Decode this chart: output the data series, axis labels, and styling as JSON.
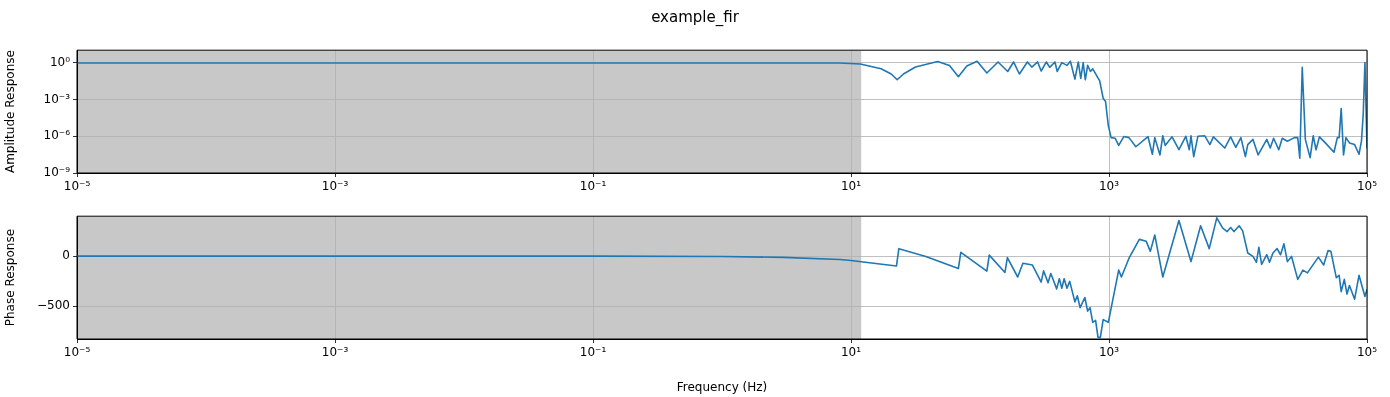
{
  "chart_data": [
    {
      "type": "line",
      "title": "example_fir",
      "ylabel": "Amplitude Response",
      "log": "xy",
      "grid": true,
      "marker": "none",
      "xlim": [
        1e-05,
        100000.0
      ],
      "ylim": [
        1e-09,
        11
      ],
      "xticks": [
        {
          "value": 1e-05,
          "label": "10⁻⁵"
        },
        {
          "value": 0.001,
          "label": "10⁻³"
        },
        {
          "value": 0.1,
          "label": "10⁻¹"
        },
        {
          "value": 10,
          "label": "10¹"
        },
        {
          "value": 1000,
          "label": "10³"
        },
        {
          "value": 100000.0,
          "label": "10⁵"
        }
      ],
      "yticks": [
        {
          "value": 1e-09,
          "label": "10⁻⁹"
        },
        {
          "value": 1e-06,
          "label": "10⁻⁶"
        },
        {
          "value": 0.001,
          "label": "10⁻³"
        },
        {
          "value": 1,
          "label": "10⁰"
        }
      ],
      "bands": [
        {
          "axis": "x",
          "from": 1e-05,
          "to": 12,
          "color": "#c8c8c8"
        }
      ],
      "series": [
        {
          "color": "#1f77b4",
          "x": [
            1e-05,
            0.001,
            0.1,
            1,
            8.2,
            11.8,
            17.1,
            20.5,
            22.8,
            25.5,
            31.6,
            47,
            58,
            68,
            79,
            95,
            113,
            138,
            164,
            182,
            202,
            233,
            252,
            280,
            298,
            327,
            347,
            381,
            397,
            431,
            472,
            502,
            544,
            578,
            604,
            631,
            655,
            683,
            718,
            748,
            847,
            901,
            940,
            988,
            1038,
            1117,
            1189,
            1303,
            1429,
            1615,
            2004,
            2168,
            2264,
            2483,
            2612,
            2725,
            3081,
            3484,
            3939,
            4190,
            4321,
            4537,
            4885,
            5524,
            6054,
            6442,
            7893,
            8766,
            9611,
            10533,
            11409,
            11907,
            13062,
            14331,
            16721,
            17783,
            18880,
            20709,
            22029,
            24155,
            27353,
            29040,
            30130,
            31477,
            33266,
            36224,
            38282,
            40272,
            42756,
            47534,
            55463,
            58884,
            60814,
            63096,
            65766,
            68707,
            73114,
            80168,
            86696,
            90573,
            93541,
            96383,
            100000
          ],
          "values": [
            1,
            1,
            1,
            1,
            1,
            0.82,
            0.33,
            0.125,
            0.042,
            0.125,
            0.46,
            1.3,
            0.63,
            0.075,
            0.56,
            1.38,
            0.15,
            1.2,
            0.2,
            1.2,
            0.125,
            1.2,
            0.46,
            1.2,
            0.22,
            1.2,
            0.43,
            1.2,
            0.2,
            1.07,
            0.63,
            1.38,
            0.047,
            1.2,
            0.054,
            1.07,
            0.042,
            0.63,
            0.2,
            0.33,
            0.034,
            0.0013,
            0.0007,
            7.5e-06,
            7.8e-07,
            6.9e-07,
            1.8e-07,
            9.6e-07,
            7.8e-07,
            1.4e-07,
            9.6e-07,
            3.4e-08,
            7.8e-07,
            3e-08,
            1.1e-06,
            1.8e-07,
            9e-07,
            8e-08,
            1e-06,
            8e-08,
            1.1e-06,
            2.2e-08,
            1e-06,
            1.1e-06,
            2.1e-07,
            9e-07,
            1.1e-07,
            9e-07,
            1.25e-07,
            7.8e-07,
            2.2e-08,
            2.1e-07,
            5.6e-07,
            3e-08,
            5.6e-07,
            1.1e-07,
            6.9e-07,
            8e-08,
            6.9e-07,
            4e-07,
            7.8e-07,
            7.8e-07,
            1.6e-08,
            0.43,
            5.6e-07,
            1.8e-08,
            1.1e-06,
            8e-08,
            9e-07,
            2.9e-07,
            5e-08,
            7.8e-07,
            7.8e-07,
            0.00019,
            3e-08,
            7.8e-07,
            2.9e-07,
            2.1e-07,
            3.4e-08,
            4e-07,
            7.3e-05,
            1.07,
            1.1e-07
          ]
        }
      ]
    },
    {
      "type": "line",
      "xlabel": "Frequency (Hz)",
      "ylabel": "Phase Response",
      "log": "x",
      "grid": true,
      "marker": "none",
      "xlim": [
        1e-05,
        100000.0
      ],
      "ylim": [
        -830,
        400
      ],
      "xticks": [
        {
          "value": 1e-05,
          "label": "10⁻⁵"
        },
        {
          "value": 0.001,
          "label": "10⁻³"
        },
        {
          "value": 0.1,
          "label": "10⁻¹"
        },
        {
          "value": 10,
          "label": "10¹"
        },
        {
          "value": 1000,
          "label": "10³"
        },
        {
          "value": 100000.0,
          "label": "10⁵"
        }
      ],
      "yticks": [
        {
          "value": -500,
          "label": "−500"
        },
        0
      ],
      "bands": [
        {
          "axis": "x",
          "from": 1e-05,
          "to": 12,
          "color": "#c8c8c8"
        }
      ],
      "series": [
        {
          "color": "#1f77b4",
          "x": [
            1e-05,
            0.001,
            0.1,
            1,
            3,
            8.2,
            10,
            22.5,
            23.5,
            38,
            68,
            71,
            113,
            118,
            156,
            163,
            196,
            215,
            255,
            298,
            311,
            337,
            354,
            393,
            412,
            431,
            449,
            472,
            496,
            544,
            568,
            597,
            650,
            683,
            713,
            748,
            787,
            822,
            857,
            901,
            988,
            1189,
            1248,
            1429,
            1718,
            1941,
            2091,
            2264,
            2612,
            3484,
            4321,
            5131,
            5984,
            6850,
            7607,
            8241,
            8766,
            9311,
            10216,
            10864,
            11907,
            13062,
            13894,
            14509,
            15242,
            16721,
            17547,
            18664,
            20090,
            21380,
            22699,
            24155,
            26001,
            29040,
            31842,
            34514,
            41976,
            46132,
            49888,
            52481,
            57810,
            60814,
            63096,
            66681,
            69984,
            73114,
            80168,
            86696,
            96383,
            100000
          ],
          "values": [
            0,
            0,
            0,
            -4,
            -12,
            -34,
            -44,
            -99,
            75,
            -3,
            -123,
            38,
            -150,
            10,
            -164,
            -14,
            -209,
            -72,
            -89,
            -260,
            -147,
            -267,
            -174,
            -328,
            -226,
            -321,
            -226,
            -321,
            -253,
            -458,
            -397,
            -516,
            -414,
            -551,
            -516,
            -663,
            -643,
            -814,
            -814,
            -636,
            -663,
            -140,
            -209,
            -21,
            168,
            150,
            48,
            212,
            -209,
            356,
            -55,
            304,
            75,
            383,
            280,
            246,
            287,
            246,
            304,
            253,
            31,
            -3,
            -62,
            89,
            -82,
            14,
            -62,
            31,
            75,
            14,
            123,
            -55,
            -3,
            -233,
            -140,
            -168,
            -10,
            -89,
            55,
            48,
            -215,
            -192,
            -356,
            -233,
            -380,
            -294,
            -431,
            -192,
            -404,
            -335
          ]
        }
      ]
    }
  ]
}
